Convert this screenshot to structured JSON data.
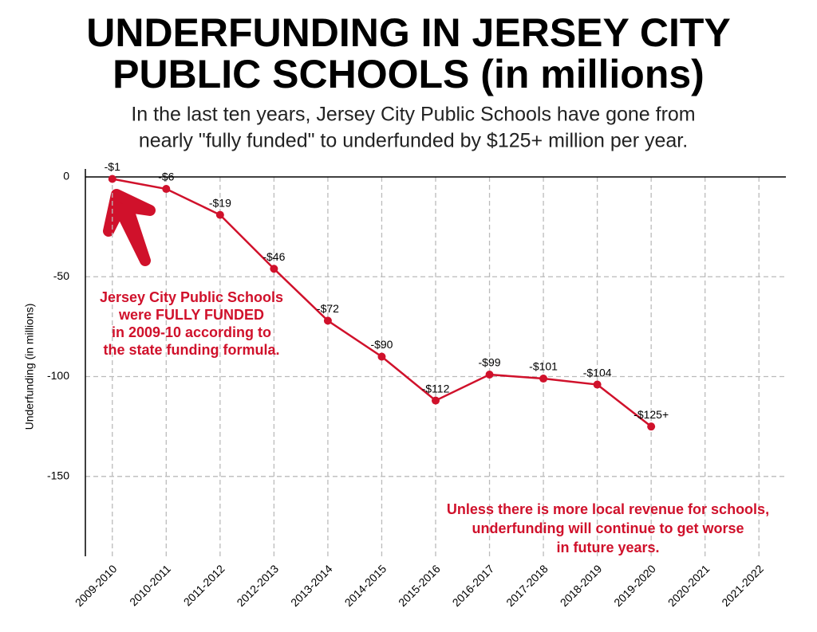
{
  "chart_data": {
    "type": "line",
    "title": [
      "UNDERFUNDING IN JERSEY CITY",
      "PUBLIC SCHOOLS (in millions)"
    ],
    "subtitle": [
      "In the last ten years, Jersey City Public Schools have gone from",
      "nearly \"fully funded\" to underfunded by $125+ million per year."
    ],
    "y_label": "Underfunding (in millions)",
    "categories": [
      "2009-2010",
      "2010-2011",
      "2011-2012",
      "2012-2013",
      "2013-2014",
      "2014-2015",
      "2015-2016",
      "2016-2017",
      "2017-2018",
      "2018-2019",
      "2019-2020",
      "2020-2021",
      "2021-2022"
    ],
    "series": [
      {
        "name": "Underfunding",
        "color": "#d0112b",
        "values": [
          -1,
          -6,
          -19,
          -46,
          -72,
          -90,
          -112,
          -99,
          -101,
          -104,
          -125,
          null,
          null
        ],
        "value_labels": [
          "-$1",
          "-$6",
          "-$19",
          "-$46",
          "-$72",
          "-$90",
          "-$112",
          "-$99",
          "-$101",
          "-$104",
          "-$125+",
          null,
          null
        ]
      }
    ],
    "ylim": [
      -190,
      0
    ],
    "yticks": [
      0,
      -50,
      -100,
      -150
    ],
    "grid": true,
    "annotations": [
      {
        "lines": [
          "Jersey City Public Schools",
          "were FULLY FUNDED",
          "in 2009-10 according to",
          "the state funding formula."
        ],
        "color": "#d0112b"
      },
      {
        "lines": [
          "Unless there is more local revenue for schools,",
          "underfunding will continue to get worse",
          "in future years."
        ],
        "color": "#d0112b"
      }
    ]
  }
}
